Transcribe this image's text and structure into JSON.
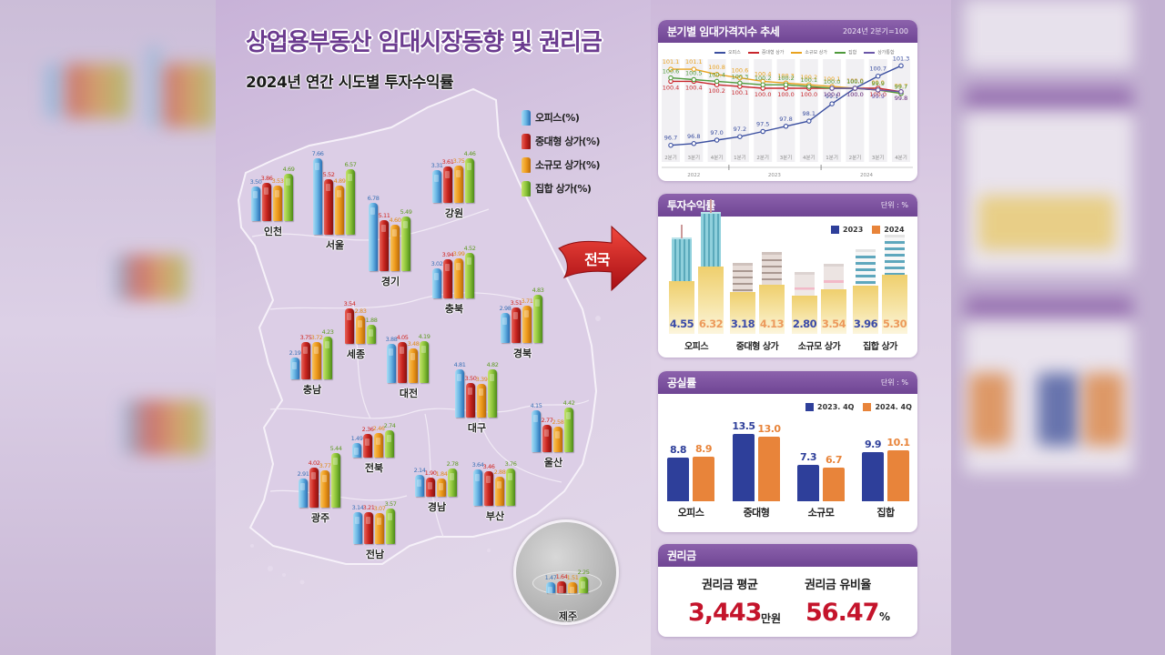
{
  "title": "상업용부동산 임대시장동향 및 권리금",
  "colors": {
    "brand_purple": "#6b3b8f",
    "office": "#3a8fd0",
    "large_retail": "#c8251f",
    "small_retail": "#ee9a1c",
    "collective_retail": "#8cc43a",
    "series_2023": "#2e3f9a",
    "series_2024": "#e8843a",
    "highlight_red": "#c4142b"
  },
  "map": {
    "arrow_label": "전국"
  },
  "chart_data": [
    {
      "type": "bar",
      "title": "2024년 연간 시도별 투자수익률",
      "unit": "%",
      "categories": [
        "인천",
        "서울",
        "경기",
        "강원",
        "충북",
        "세종",
        "충남",
        "대전",
        "경북",
        "대구",
        "울산",
        "전북",
        "광주",
        "경남",
        "부산",
        "전남",
        "제주"
      ],
      "series": [
        {
          "name": "오피스(%)",
          "values": [
            3.5,
            7.66,
            6.78,
            3.31,
            3.02,
            null,
            2.19,
            3.88,
            2.98,
            4.81,
            4.15,
            1.49,
            2.91,
            2.14,
            3.64,
            3.14,
            1.47
          ]
        },
        {
          "name": "중대형 상가(%)",
          "values": [
            3.86,
            5.52,
            5.11,
            3.61,
            3.94,
            3.54,
            3.75,
            4.05,
            3.51,
            3.5,
            2.77,
            2.36,
            4.02,
            1.9,
            3.46,
            3.21,
            1.64
          ]
        },
        {
          "name": "소규모 상가(%)",
          "values": [
            3.53,
            4.89,
            4.6,
            3.75,
            3.99,
            2.83,
            3.72,
            3.48,
            3.71,
            3.39,
            2.58,
            2.46,
            3.77,
            1.84,
            2.88,
            3.07,
            1.51
          ]
        },
        {
          "name": "집합 상가(%)",
          "values": [
            4.69,
            6.57,
            5.49,
            4.46,
            4.52,
            1.88,
            4.23,
            4.19,
            4.83,
            4.82,
            4.42,
            2.74,
            5.44,
            2.78,
            3.76,
            3.57,
            2.25
          ]
        }
      ]
    },
    {
      "type": "line",
      "title": "분기별 임대가격지수 추세",
      "subtitle": "2024년 2분기=100",
      "x": [
        "2분기",
        "3분기",
        "4분기",
        "1분기",
        "2분기",
        "3분기",
        "4분기",
        "1분기",
        "2분기",
        "3분기",
        "4분기"
      ],
      "x_groups": [
        {
          "label": "2022",
          "span": 3
        },
        {
          "label": "2023",
          "span": 4
        },
        {
          "label": "2024",
          "span": 4
        }
      ],
      "ylim": [
        96.5,
        101.5
      ],
      "series": [
        {
          "name": "오피스",
          "color": "#3b4fa0",
          "values": [
            96.7,
            96.8,
            97.0,
            97.2,
            97.5,
            97.8,
            98.1,
            99.1,
            100.0,
            100.7,
            101.3
          ]
        },
        {
          "name": "중대형 상가",
          "color": "#c8262c",
          "values": [
            100.4,
            100.4,
            100.2,
            100.1,
            100.0,
            100.0,
            100.0,
            100.0,
            100.0,
            100.0,
            99.8
          ]
        },
        {
          "name": "소규모 상가",
          "color": "#e9a21e",
          "values": [
            101.1,
            101.1,
            100.8,
            100.6,
            100.4,
            100.3,
            100.2,
            100.1,
            100.0,
            99.9,
            99.7
          ]
        },
        {
          "name": "집합",
          "color": "#4f9a3c",
          "values": [
            100.6,
            100.5,
            100.4,
            100.3,
            100.2,
            100.2,
            100.1,
            100.0,
            100.0,
            99.9,
            99.7
          ]
        },
        {
          "name": "상가통합",
          "color": "#6a56a8",
          "values": [
            null,
            null,
            null,
            null,
            null,
            null,
            null,
            100.0,
            100.0,
            99.9,
            99.8
          ]
        }
      ]
    },
    {
      "type": "bar",
      "title": "투자수익률",
      "unit": "단위 : %",
      "categories": [
        "오피스",
        "중대형 상가",
        "소규모 상가",
        "집합 상가"
      ],
      "series": [
        {
          "name": "2023",
          "color": "#2e3f9a",
          "values": [
            4.55,
            3.18,
            2.8,
            3.96
          ]
        },
        {
          "name": "2024",
          "color": "#e8843a",
          "values": [
            6.32,
            4.13,
            3.54,
            5.3
          ]
        }
      ]
    },
    {
      "type": "bar",
      "title": "공실률",
      "unit": "단위 : %",
      "categories": [
        "오피스",
        "중대형",
        "소규모",
        "집합"
      ],
      "series": [
        {
          "name": "2023. 4Q",
          "color": "#2e3f9a",
          "values": [
            8.8,
            13.5,
            7.3,
            9.9
          ]
        },
        {
          "name": "2024. 4Q",
          "color": "#e8843a",
          "values": [
            8.9,
            13.0,
            6.7,
            10.1
          ]
        }
      ]
    }
  ],
  "key_money": {
    "title": "권리금",
    "avg_label": "권리금 평균",
    "avg_value": "3,443",
    "avg_unit": "만원",
    "rate_label": "권리금 유비율",
    "rate_value": "56.47",
    "rate_unit": "%"
  }
}
